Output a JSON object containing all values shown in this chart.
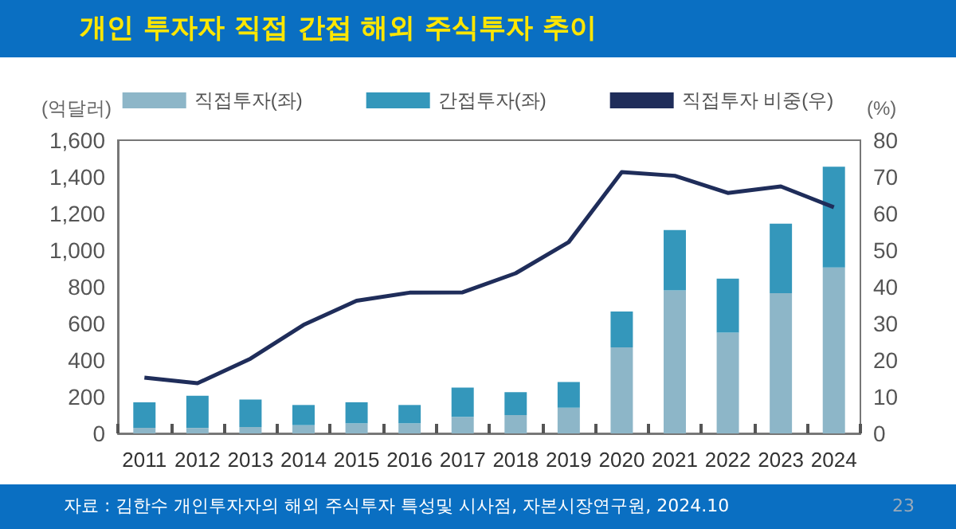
{
  "chart_data": {
    "type": "bar",
    "title": "개인 투자자 직접 간접 해외 주식투자 추이",
    "ylabel": "(억달러)",
    "y2label": "(%)",
    "annotations": [
      "자료 : 김한수 개인투자자의 해외 주식투자 특성및 시사점, 자본시장연구원, 2024.10",
      "23"
    ],
    "categories": [
      "2011",
      "2012",
      "2013",
      "2014",
      "2015",
      "2016",
      "2017",
      "2018",
      "2019",
      "2020",
      "2021",
      "2022",
      "2023",
      "2024"
    ],
    "stacked": true,
    "series": [
      {
        "name": "직접투자(좌)",
        "color": "#8db6c8",
        "values": [
          30,
          30,
          35,
          45,
          55,
          55,
          90,
          100,
          140,
          470,
          780,
          550,
          765,
          905
        ]
      },
      {
        "name": "간접투자(좌)",
        "color": "#3497bb",
        "values": [
          140,
          175,
          150,
          110,
          115,
          100,
          160,
          125,
          140,
          195,
          330,
          295,
          380,
          550
        ]
      },
      {
        "name": "직접투자 비중(우)",
        "type": "line",
        "axis": "y2",
        "color": "#1f2d5a",
        "values": [
          15.2,
          13.7,
          20.4,
          29.6,
          36.2,
          38.4,
          38.5,
          43.7,
          52.2,
          71.3,
          70.3,
          65.6,
          67.4,
          61.7
        ]
      }
    ],
    "ylim": [
      0,
      1600
    ],
    "yticks": [
      0,
      200,
      400,
      600,
      800,
      {
        "value": 1000,
        "label": "1,000"
      },
      {
        "value": 1200,
        "label": "1,200"
      },
      {
        "value": 1400,
        "label": "1,400"
      },
      {
        "value": 1600,
        "label": "1,600"
      }
    ],
    "y2lim": [
      0,
      80
    ],
    "y2ticks": [
      0,
      10,
      20,
      30,
      40,
      50,
      60,
      70,
      80
    ],
    "grid": false,
    "legend": "top",
    "marker": "none",
    "line_style": "solid"
  }
}
